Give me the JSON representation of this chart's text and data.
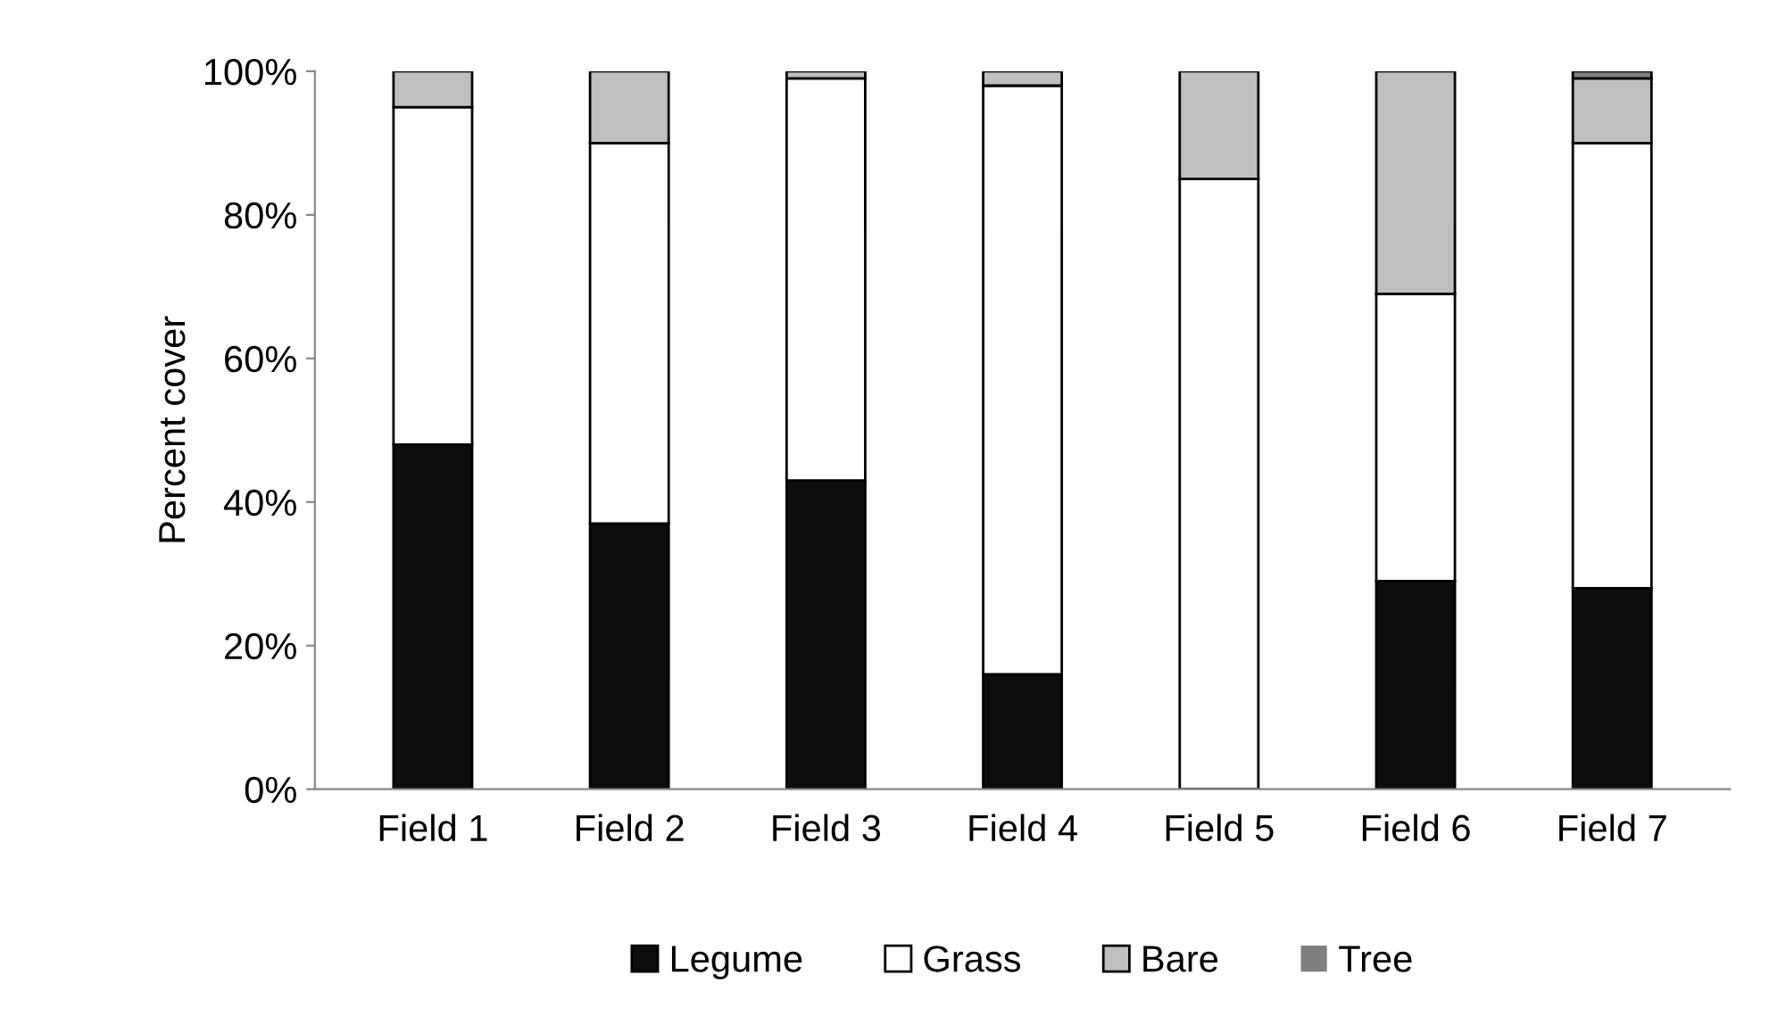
{
  "chart_data": {
    "type": "bar",
    "stacked": true,
    "ylabel": "Percent cover",
    "categories": [
      "Field 1",
      "Field 2",
      "Field 3",
      "Field 4",
      "Field 5",
      "Field 6",
      "Field 7"
    ],
    "series": [
      {
        "name": "Legume",
        "color": "#0d0d0d",
        "values": [
          48,
          37,
          43,
          16,
          0,
          29,
          28
        ]
      },
      {
        "name": "Grass",
        "color": "#ffffff",
        "values": [
          47,
          53,
          56,
          82,
          85,
          40,
          62
        ]
      },
      {
        "name": "Bare",
        "color": "#bfbfbf",
        "values": [
          5,
          10,
          1,
          2,
          15,
          31,
          9
        ]
      },
      {
        "name": "Tree",
        "color": "#7f7f7f",
        "values": [
          0,
          0,
          0,
          0,
          0,
          0,
          1
        ]
      }
    ],
    "ylim": [
      0,
      100
    ],
    "yticks": [
      {
        "value": 0,
        "label": "0%"
      },
      {
        "value": 20,
        "label": "20%"
      },
      {
        "value": 40,
        "label": "40%"
      },
      {
        "value": 60,
        "label": "60%"
      },
      {
        "value": 80,
        "label": "80%"
      },
      {
        "value": 100,
        "label": "100%"
      }
    ],
    "grid": false,
    "legend": "bottom"
  }
}
